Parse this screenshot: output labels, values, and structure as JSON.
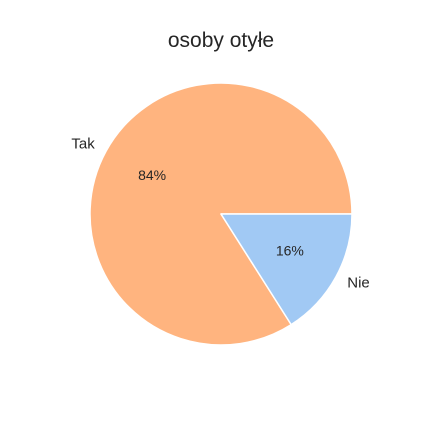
{
  "chart_data": {
    "type": "pie",
    "title": "osoby otyłe",
    "labels": [
      "Tak",
      "Nie"
    ],
    "values": [
      84,
      16
    ],
    "percent_labels": [
      "84%",
      "16%"
    ],
    "colors": [
      "#ffb47f",
      "#a1c9f4"
    ],
    "start_angle_deg": 0,
    "direction": "counterclockwise",
    "legend": "none"
  }
}
